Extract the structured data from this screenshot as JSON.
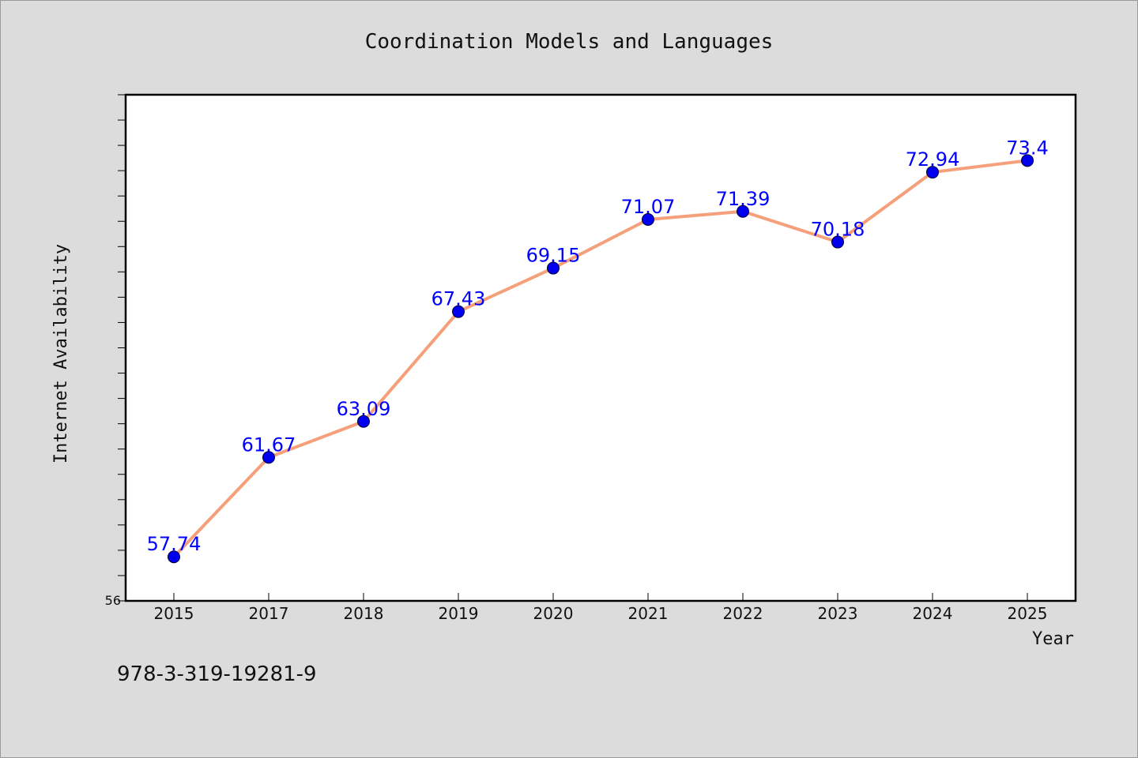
{
  "chart_data": {
    "type": "line",
    "title": "Coordination Models and Languages",
    "xlabel": "Year",
    "ylabel": "Internet Availability",
    "categories": [
      "2015",
      "2017",
      "2018",
      "2019",
      "2020",
      "2021",
      "2022",
      "2023",
      "2024",
      "2025"
    ],
    "series": [
      {
        "values": [
          57.74,
          61.67,
          63.09,
          67.43,
          69.15,
          71.07,
          71.39,
          70.18,
          72.94,
          73.4
        ],
        "labels": [
          "57.74",
          "61.67",
          "63.09",
          "67.43",
          "69.15",
          "71.07",
          "71.39",
          "70.18",
          "72.94",
          "73.4"
        ],
        "line_color": "#f5a07a",
        "marker_color": "#0000ee"
      }
    ],
    "ylim": [
      56,
      76
    ],
    "y_tick_labels": [
      "56"
    ],
    "grid": false
  },
  "annotation": "978-3-319-19281-9"
}
